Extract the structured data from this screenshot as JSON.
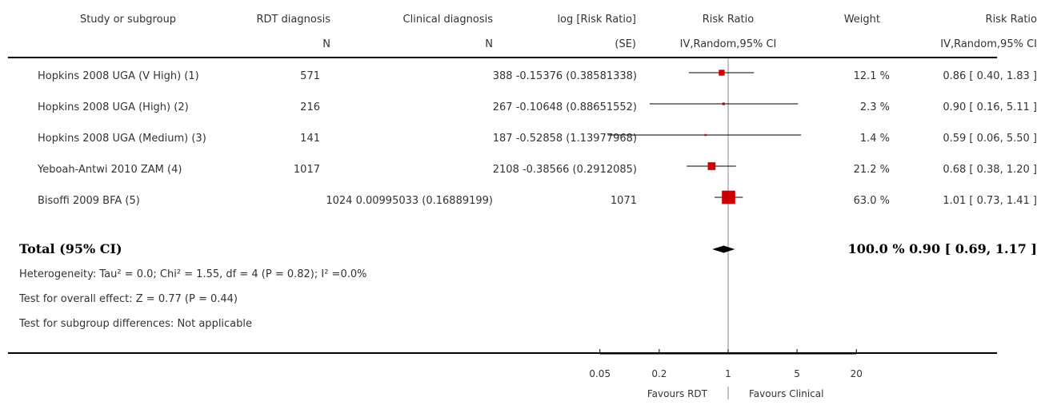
{
  "header": {
    "study": "Study or subgroup",
    "rdt": "RDT diagnosis",
    "rdt_n": "N",
    "clin": "Clinical diagnosis",
    "clin_n": "N",
    "logrr": "log [Risk Ratio]",
    "logrr_se": "(SE)",
    "rr_plot": "Risk Ratio",
    "rr_plot_sub": "IV,Random,95% CI",
    "weight": "Weight",
    "rr": "Risk Ratio",
    "rr_sub": "IV,Random,95% CI"
  },
  "rows": [
    {
      "study": "Hopkins 2008 UGA (V High) (1)",
      "col2": "571",
      "col3": "388 -0.15376 (0.38581338)",
      "weight": "12.1 %",
      "ci": "0.86 [ 0.40, 1.83 ]"
    },
    {
      "study": "Hopkins 2008 UGA (High) (2)",
      "col2": "216",
      "col3": "267 -0.10648 (0.88651552)",
      "weight": "2.3 %",
      "ci": "0.90 [ 0.16, 5.11 ]"
    },
    {
      "study": "Hopkins 2008 UGA (Medium) (3)",
      "col2": "141",
      "col3": "187 -0.52858 (1.13977968)",
      "weight": "1.4 %",
      "ci": "0.59 [ 0.06, 5.50 ]"
    },
    {
      "study": "Yeboah-Antwi 2010 ZAM (4)",
      "col2": "1017",
      "col3": "2108 -0.38566 (0.2912085)",
      "weight": "21.2 %",
      "ci": "0.68 [ 0.38, 1.20 ]"
    },
    {
      "study": "Bisoffi 2009 BFA (5)",
      "col2": "1024 0.00995033 (0.16889199)",
      "col3": "1071",
      "weight": "63.0 %",
      "ci": "1.01 [ 0.73, 1.41 ]"
    }
  ],
  "total": {
    "label": "Total (95% CI)",
    "weight_ci": "100.0 % 0.90 [ 0.69, 1.17 ]"
  },
  "footer": {
    "heterogeneity": "Heterogeneity: Tau² = 0.0; Chi² = 1.55, df = 4 (P = 0.82); I² =0.0%",
    "overall": "Test for overall effect: Z = 0.77 (P = 0.44)",
    "subgroup": "Test for subgroup differences: Not applicable"
  },
  "axis": {
    "favours_left": "Favours RDT",
    "favours_right": "Favours Clinical"
  },
  "colors": {
    "marker": "#cc0000",
    "line": "#000000"
  },
  "chart_data": {
    "type": "scatter",
    "scale": "log",
    "xlim": [
      0.05,
      20
    ],
    "ticks": [
      0.05,
      0.2,
      1,
      5,
      20
    ],
    "tick_labels": [
      "0.05",
      "0.2",
      "1",
      "5",
      "20"
    ],
    "reference_line": 1,
    "studies": [
      {
        "rr": 0.86,
        "lo": 0.4,
        "hi": 1.83,
        "weight": 12.1
      },
      {
        "rr": 0.9,
        "lo": 0.16,
        "hi": 5.11,
        "weight": 2.3
      },
      {
        "rr": 0.59,
        "lo": 0.06,
        "hi": 5.5,
        "weight": 1.4
      },
      {
        "rr": 0.68,
        "lo": 0.38,
        "hi": 1.2,
        "weight": 21.2
      },
      {
        "rr": 1.01,
        "lo": 0.73,
        "hi": 1.41,
        "weight": 63.0
      }
    ],
    "total": {
      "rr": 0.9,
      "lo": 0.69,
      "hi": 1.17
    }
  }
}
